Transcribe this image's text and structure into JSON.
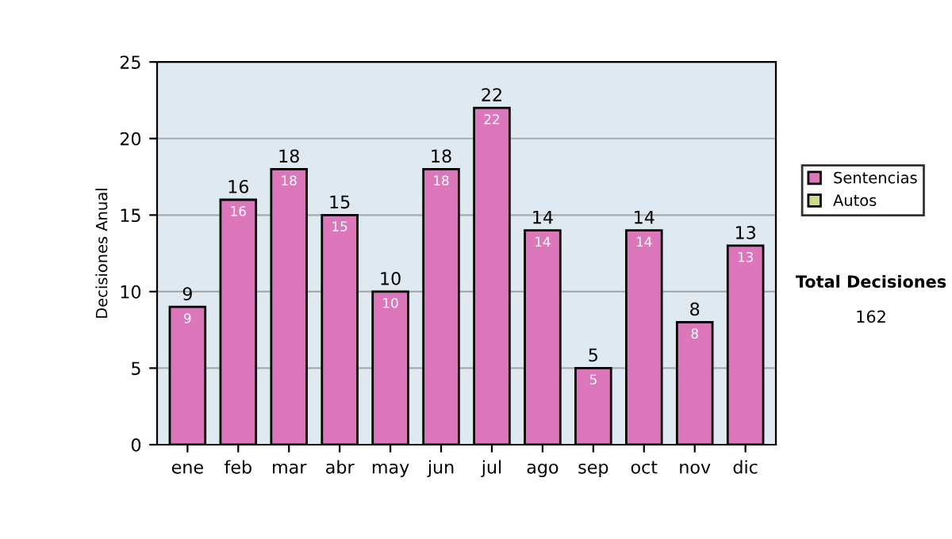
{
  "chart_data": {
    "type": "bar",
    "ylabel": "Decisiones Anual",
    "categories": [
      "ene",
      "feb",
      "mar",
      "abr",
      "may",
      "jun",
      "jul",
      "ago",
      "sep",
      "oct",
      "nov",
      "dic"
    ],
    "series": [
      {
        "name": "Sentencias",
        "color": "#dd77bb",
        "values": [
          9,
          16,
          18,
          15,
          10,
          18,
          22,
          14,
          5,
          14,
          8,
          13
        ]
      },
      {
        "name": "Autos",
        "color": "#ccdd88",
        "values": [
          null,
          null,
          null,
          null,
          null,
          null,
          null,
          null,
          null,
          null,
          null,
          null
        ]
      }
    ],
    "totals": [
      "9",
      "16",
      "18",
      "15",
      "10",
      "18",
      "22",
      "14",
      "5",
      "14",
      "8",
      "13"
    ],
    "ylim": [
      0,
      25
    ],
    "yticks": [
      0,
      5,
      10,
      15,
      20,
      25
    ],
    "grid": "y",
    "legend": "right",
    "data_labels": true,
    "annotations": [
      "Total Decisiones",
      "162"
    ]
  }
}
